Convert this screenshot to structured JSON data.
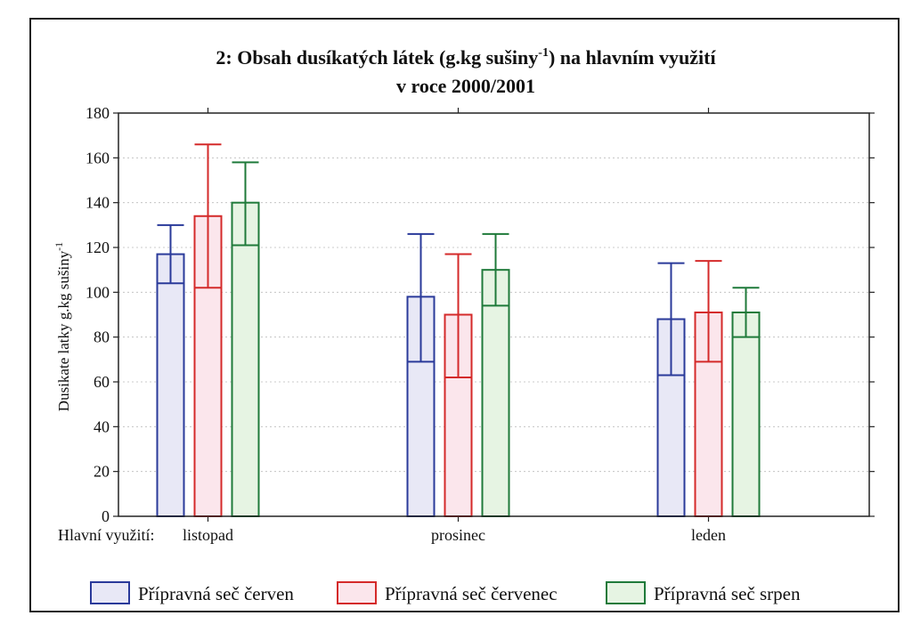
{
  "chart_data": {
    "type": "bar",
    "title_line1_main": "2: Obsah dusíkatých látek (g.kg sušiny",
    "title_line1_sup": "-1",
    "title_line1_tail": ") na hlavním využití",
    "title_line2": "v roce 2000/2001",
    "ylabel_main": "Dusikate latky g.kg sušiny",
    "ylabel_sup": "-1",
    "x_prefix_label": "Hlavní využití:",
    "categories": [
      "listopad",
      "prosinec",
      "leden"
    ],
    "ylim": [
      0,
      180
    ],
    "yticks": [
      0,
      20,
      40,
      60,
      80,
      100,
      120,
      140,
      160,
      180
    ],
    "grid": true,
    "legend_position": "bottom",
    "error_bars": true,
    "series": [
      {
        "name": "Přípravná seč červen",
        "color": "#2a3a9a",
        "fill": "#e8e8f6",
        "values": [
          117,
          98,
          88
        ],
        "err_low": [
          104,
          69,
          63
        ],
        "err_high": [
          130,
          126,
          113
        ]
      },
      {
        "name": "Přípravná seč červenec",
        "color": "#d42a2a",
        "fill": "#fbe6ec",
        "values": [
          134,
          90,
          91
        ],
        "err_low": [
          102,
          62,
          69
        ],
        "err_high": [
          166,
          117,
          114
        ]
      },
      {
        "name": "Přípravná seč srpen",
        "color": "#1f7a3a",
        "fill": "#e6f4e3",
        "values": [
          140,
          110,
          91
        ],
        "err_low": [
          121,
          94,
          80
        ],
        "err_high": [
          158,
          126,
          102
        ]
      }
    ]
  }
}
